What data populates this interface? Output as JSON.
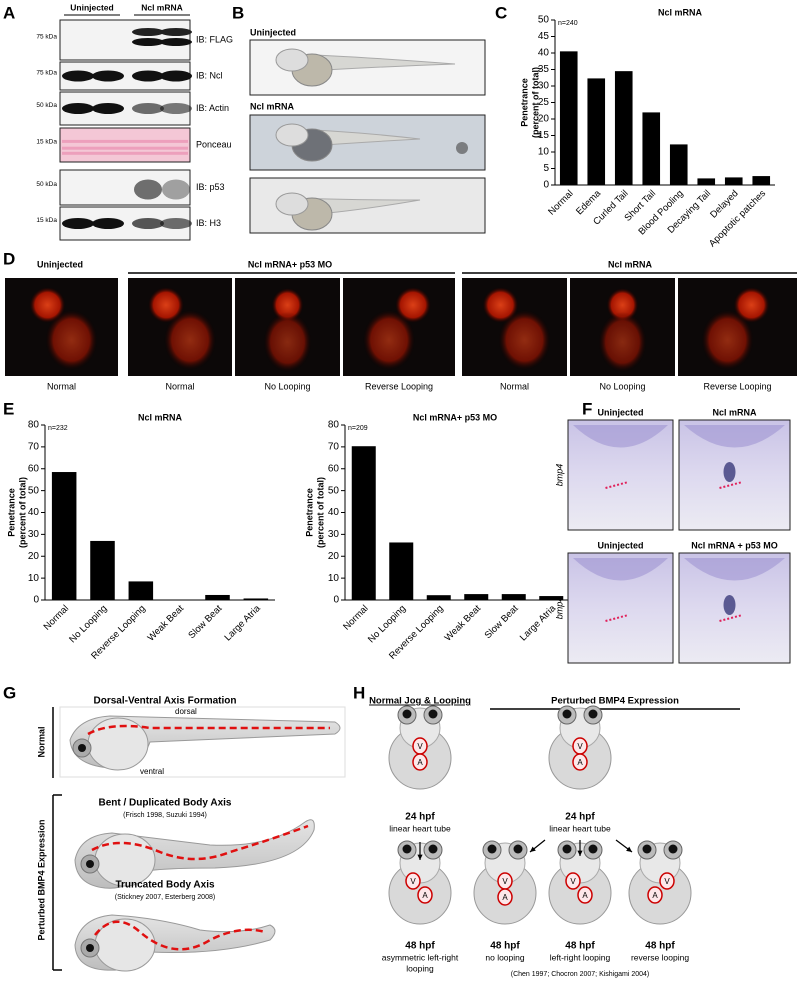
{
  "panel_labels": [
    "A",
    "B",
    "C",
    "D",
    "E",
    "F",
    "G",
    "H"
  ],
  "blot": {
    "groups": [
      "Uninjected",
      "Ncl mRNA"
    ],
    "rows": [
      {
        "kda": "75 kDa",
        "probe": "IB: FLAG"
      },
      {
        "kda": "75 kDa",
        "probe": "IB: Ncl"
      },
      {
        "kda": "50 kDa",
        "probe": "IB: Actin"
      },
      {
        "kda": "15 kDa",
        "probe": "Ponceau"
      },
      {
        "kda": "50 kDa",
        "probe": "IB: p53"
      },
      {
        "kda": "15 kDa",
        "probe": "IB: H3"
      }
    ]
  },
  "embryo_images": {
    "titles": [
      "Uninjected",
      "Ncl mRNA"
    ]
  },
  "heart_images": {
    "groups": [
      "Uninjected",
      "Ncl mRNA+ p53 MO",
      "Ncl mRNA"
    ],
    "captions": [
      "Normal",
      "Normal",
      "No Looping",
      "Reverse Looping",
      "Normal",
      "No Looping",
      "Reverse Looping"
    ]
  },
  "chart_data": [
    {
      "type": "bar",
      "title": "Ncl mRNA",
      "annotation": "n=240",
      "ylabel": [
        "Penetrance",
        "(percent of total)"
      ],
      "categories": [
        "Normal",
        "Edema",
        "Curled Tail",
        "Short Tail",
        "Blood Pooling",
        "Decaying Tail",
        "Delayed",
        "Apoptotic patches"
      ],
      "values": [
        40.5,
        32.3,
        34.5,
        22,
        12.3,
        2,
        2.3,
        2.7
      ],
      "color": "#000000",
      "ylim": [
        0,
        50
      ],
      "yticks": [
        0,
        5,
        10,
        15,
        20,
        25,
        30,
        35,
        40,
        45,
        50
      ]
    },
    {
      "type": "bar",
      "title": "Ncl mRNA",
      "annotation": "n=232",
      "ylabel": [
        "Penetrance",
        "(percent of total)"
      ],
      "categories": [
        "Normal",
        "No Looping",
        "Reverse Looping",
        "Weak Beat",
        "Slow Beat",
        "Large Atria"
      ],
      "values": [
        58.5,
        27,
        8.5,
        0,
        2.3,
        0.7
      ],
      "color": "#000000",
      "ylim": [
        0,
        80
      ],
      "yticks": [
        0,
        10,
        20,
        30,
        40,
        50,
        60,
        70,
        80
      ]
    },
    {
      "type": "bar",
      "title": "Ncl mRNA+ p53 MO",
      "annotation": "n=209",
      "ylabel": [
        "Penetrance",
        "(percent of total)"
      ],
      "categories": [
        "Normal",
        "No Looping",
        "Reverse Looping",
        "Weak Beat",
        "Slow Beat",
        "Large Atria"
      ],
      "values": [
        70.3,
        26.3,
        2.2,
        2.7,
        2.7,
        1.8
      ],
      "color": "#000000",
      "ylim": [
        0,
        80
      ],
      "yticks": [
        0,
        10,
        20,
        30,
        40,
        50,
        60,
        70,
        80
      ]
    }
  ],
  "ish": {
    "titles": [
      "Uninjected",
      "Ncl mRNA",
      "Uninjected",
      "Ncl mRNA + p53 MO"
    ],
    "gene_labels": [
      "bmp4",
      "bmp4"
    ]
  },
  "axis_schematic": {
    "title": "Dorsal-Ventral Axis Formation",
    "dorsal": "dorsal",
    "ventral": "ventral",
    "normal_label": "Normal",
    "perturbed_label": "Perturbed BMP4 Expression",
    "bent_title": "Bent / Duplicated Body Axis",
    "bent_ref": "(Frisch 1998, Suzuki 1994)",
    "trunc_title": "Truncated Body Axis",
    "trunc_ref": "(Stickney 2007, Esterberg 2008)"
  },
  "heart_schematic": {
    "headers": [
      "Normal Jog & Looping",
      "Perturbed BMP4 Expression"
    ],
    "embryos": [
      {
        "stage": "24 hpf",
        "desc": [
          "linear heart tube"
        ],
        "v": "V",
        "a": "A"
      },
      {
        "stage": "24 hpf",
        "desc": [
          "linear heart tube"
        ],
        "v": "V",
        "a": "A"
      },
      {
        "stage": "48 hpf",
        "desc": [
          "asymmetric left-right",
          "looping"
        ],
        "v": "V",
        "a": "A"
      },
      {
        "stage": "48 hpf",
        "desc": [
          "no looping"
        ],
        "v": "V",
        "a": "A"
      },
      {
        "stage": "48 hpf",
        "desc": [
          "left-right looping"
        ],
        "v": "V",
        "a": "A"
      },
      {
        "stage": "48 hpf",
        "desc": [
          "reverse looping"
        ],
        "v": "V",
        "a": "A"
      }
    ],
    "reference": "(Chen 1997; Chocron 2007; Kishigami 2004)"
  }
}
